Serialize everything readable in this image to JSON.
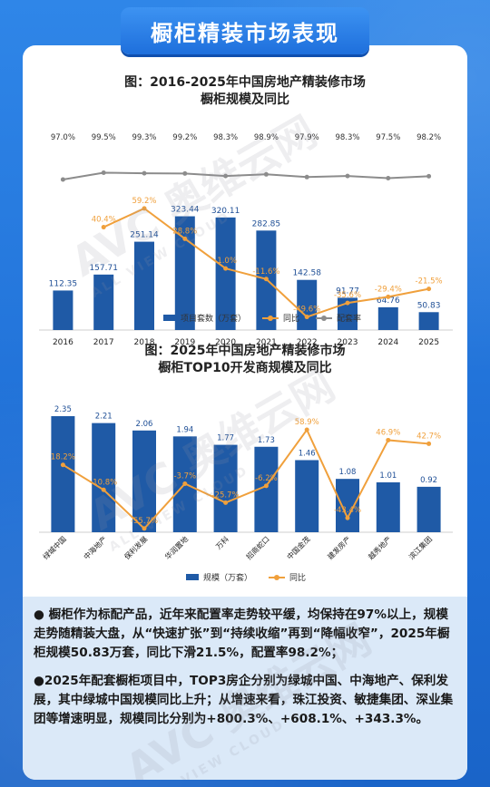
{
  "page": {
    "banner_title": "橱柜精装市场表现",
    "colors": {
      "background": "#2a7fe3",
      "bar": "#1f5aa6",
      "yoy_line": "#f0a03c",
      "rate_line": "#8c8c8c",
      "text_box_bg": "#dbe9f8"
    }
  },
  "watermark": {
    "cn": "奥维云网",
    "en": "ALL VIEW CLOUD",
    "logo": "AVC"
  },
  "chart_data": [
    {
      "type": "bar",
      "title_line1": "图：2016-2025年中国房地产精装修市场",
      "title_line2": "橱柜规模及同比",
      "categories": [
        "2016",
        "2017",
        "2018",
        "2019",
        "2020",
        "2021",
        "2022",
        "2023",
        "2024",
        "2025"
      ],
      "series": [
        {
          "name": "项目套数（万套）",
          "type": "bar",
          "values": [
            112.35,
            157.71,
            251.14,
            323.44,
            320.11,
            282.85,
            142.58,
            91.77,
            64.76,
            50.83
          ]
        },
        {
          "name": "同比",
          "type": "line",
          "values": [
            null,
            40.4,
            59.2,
            28.8,
            -1.0,
            -11.6,
            -49.6,
            -35.6,
            -29.4,
            -21.5
          ]
        },
        {
          "name": "配套率",
          "type": "line",
          "values": [
            97.0,
            99.5,
            99.3,
            99.2,
            98.3,
            98.9,
            97.9,
            98.3,
            97.5,
            98.2
          ]
        }
      ],
      "value_labels": [
        "112.35",
        "157.71",
        "251.14",
        "323.44",
        "320.11",
        "282.85",
        "142.58",
        "91.77",
        "64.76",
        "50.83"
      ],
      "yoy_labels": [
        "",
        "40.4%",
        "59.2%",
        "28.8%",
        "-1.0%",
        "-11.6%",
        "-49.6%",
        "-35.6%",
        "-29.4%",
        "-21.5%"
      ],
      "rate_labels": [
        "97.0%",
        "99.5%",
        "99.3%",
        "99.2%",
        "98.3%",
        "98.9%",
        "97.9%",
        "98.3%",
        "97.5%",
        "98.2%"
      ],
      "legend": [
        "项目套数（万套）",
        "同比",
        "配套率"
      ]
    },
    {
      "type": "bar",
      "title_line1": "图：2025年中国房地产精装修市场",
      "title_line2": "橱柜TOP10开发商规模及同比",
      "categories": [
        "绿城中国",
        "中海地产",
        "保利发展",
        "华润置地",
        "万科",
        "招商蛇口",
        "中国金茂",
        "建发房产",
        "越秀地产",
        "滨江集团"
      ],
      "series": [
        {
          "name": "规模（万套）",
          "type": "bar",
          "values": [
            2.35,
            2.21,
            2.06,
            1.94,
            1.77,
            1.73,
            1.46,
            1.08,
            1.01,
            0.92
          ]
        },
        {
          "name": "同比",
          "type": "line",
          "values": [
            18.2,
            -10.8,
            -55.7,
            -3.7,
            -25.7,
            -6.2,
            58.9,
            -43.4,
            46.9,
            42.7
          ]
        }
      ],
      "value_labels": [
        "2.35",
        "2.21",
        "2.06",
        "1.94",
        "1.77",
        "1.73",
        "1.46",
        "1.08",
        "1.01",
        "0.92"
      ],
      "yoy_labels": [
        "18.2%",
        "-10.8%",
        "-55.7%",
        "-3.7%",
        "-25.7%",
        "-6.2%",
        "58.9%",
        "-43.4%",
        "46.9%",
        "42.7%"
      ],
      "legend": [
        "规模（万套）",
        "同比"
      ]
    }
  ],
  "text": {
    "para1": "● 橱柜作为标配产品，近年来配置率走势较平缓，均保持在97%以上，规模走势随精装大盘，从“快速扩张”到“持续收缩”再到“降幅收窄”，2025年橱柜规模50.83万套，同比下滑21.5%，配置率98.2%；",
    "para2": "●2025年配套橱柜项目中，TOP3房企分别为绿城中国、中海地产、保利发展，其中绿城中国规模同比上升；从增速来看，珠江投资、敏捷集团、深业集团等增速明显，规模同比分别为+800.3%、+608.1%、+343.3%。"
  }
}
